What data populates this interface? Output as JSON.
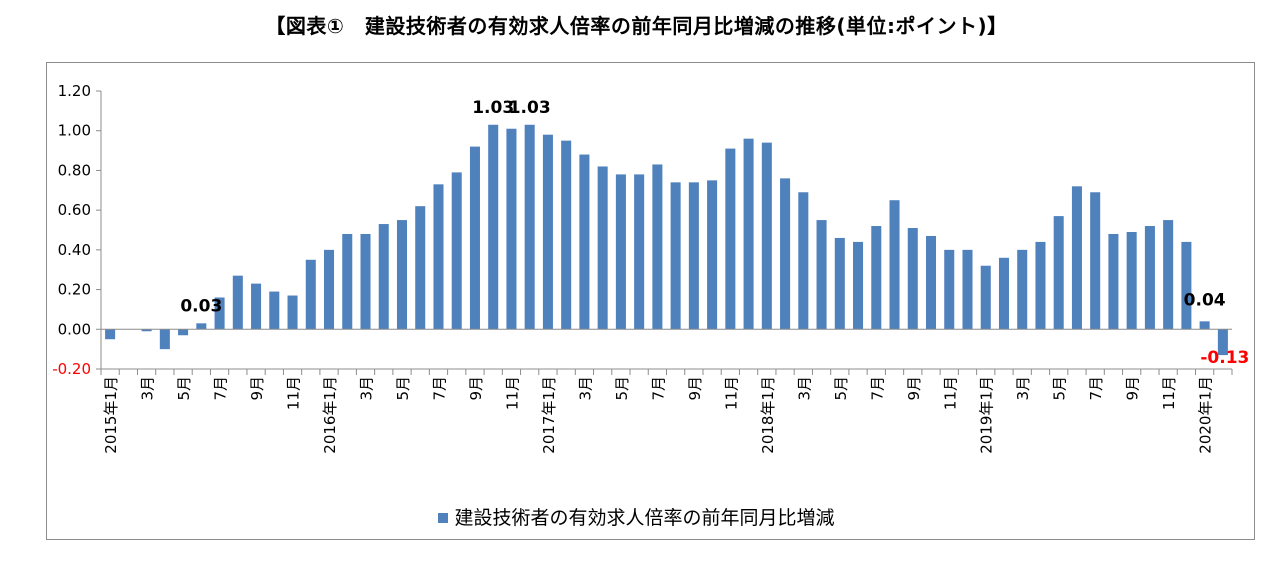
{
  "title": "【図表①　建設技術者の有効求人倍率の前年同月比増減の推移(単位:ポイント)】",
  "legend": {
    "label": "建設技術者の有効求人倍率の前年同月比増減",
    "position": "bottom"
  },
  "colors": {
    "bar": "#4f81bd",
    "negative_label": "#ff0000",
    "axis": "#8c8c8c"
  },
  "chart_data": {
    "type": "bar",
    "ylim": [
      -0.2,
      1.2
    ],
    "yticks": [
      "1.20",
      "1.00",
      "0.80",
      "0.60",
      "0.40",
      "0.20",
      "0.00",
      "-0.20"
    ],
    "ytick_values": [
      1.2,
      1.0,
      0.8,
      0.6,
      0.4,
      0.2,
      0.0,
      -0.2
    ],
    "grid": false,
    "categories": [
      "2015年1月",
      "2月",
      "3月",
      "4月",
      "5月",
      "6月",
      "7月",
      "8月",
      "9月",
      "10月",
      "11月",
      "12月",
      "2016年1月",
      "2月",
      "3月",
      "4月",
      "5月",
      "6月",
      "7月",
      "8月",
      "9月",
      "10月",
      "11月",
      "12月",
      "2017年1月",
      "2月",
      "3月",
      "4月",
      "5月",
      "6月",
      "7月",
      "8月",
      "9月",
      "10月",
      "11月",
      "12月",
      "2018年1月",
      "2月",
      "3月",
      "4月",
      "5月",
      "6月",
      "7月",
      "8月",
      "9月",
      "10月",
      "11月",
      "12月",
      "2019年1月",
      "2月",
      "3月",
      "4月",
      "5月",
      "6月",
      "7月",
      "8月",
      "9月",
      "10月",
      "11月",
      "12月",
      "2020年1月",
      "2月"
    ],
    "tick_labels": [
      "2015年1月",
      "",
      "3月",
      "",
      "5月",
      "",
      "7月",
      "",
      "9月",
      "",
      "11月",
      "",
      "2016年1月",
      "",
      "3月",
      "",
      "5月",
      "",
      "7月",
      "",
      "9月",
      "",
      "11月",
      "",
      "2017年1月",
      "",
      "3月",
      "",
      "5月",
      "",
      "7月",
      "",
      "9月",
      "",
      "11月",
      "",
      "2018年1月",
      "",
      "3月",
      "",
      "5月",
      "",
      "7月",
      "",
      "9月",
      "",
      "11月",
      "",
      "2019年1月",
      "",
      "3月",
      "",
      "5月",
      "",
      "7月",
      "",
      "9月",
      "",
      "11月",
      "",
      "2020年1月",
      ""
    ],
    "series": [
      {
        "name": "建設技術者の有効求人倍率の前年同月比増減",
        "values": [
          -0.05,
          0.0,
          -0.01,
          -0.1,
          -0.03,
          0.03,
          0.16,
          0.27,
          0.23,
          0.19,
          0.17,
          0.35,
          0.4,
          0.48,
          0.48,
          0.53,
          0.55,
          0.62,
          0.73,
          0.79,
          0.92,
          1.03,
          1.01,
          1.03,
          0.98,
          0.95,
          0.88,
          0.82,
          0.78,
          0.78,
          0.83,
          0.74,
          0.74,
          0.75,
          0.91,
          0.96,
          0.94,
          0.76,
          0.69,
          0.55,
          0.46,
          0.44,
          0.52,
          0.65,
          0.51,
          0.47,
          0.4,
          0.4,
          0.32,
          0.36,
          0.4,
          0.44,
          0.57,
          0.72,
          0.69,
          0.48,
          0.49,
          0.52,
          0.55,
          0.44,
          0.04,
          -0.13
        ]
      }
    ],
    "data_labels": [
      {
        "index": 5,
        "text": "0.03",
        "color": "black"
      },
      {
        "index": 21,
        "text": "1.03",
        "color": "black"
      },
      {
        "index": 23,
        "text": "1.03",
        "color": "black"
      },
      {
        "index": 60,
        "text": "0.04",
        "color": "black"
      },
      {
        "index": 61,
        "text": "-0.13",
        "color": "red"
      }
    ]
  }
}
